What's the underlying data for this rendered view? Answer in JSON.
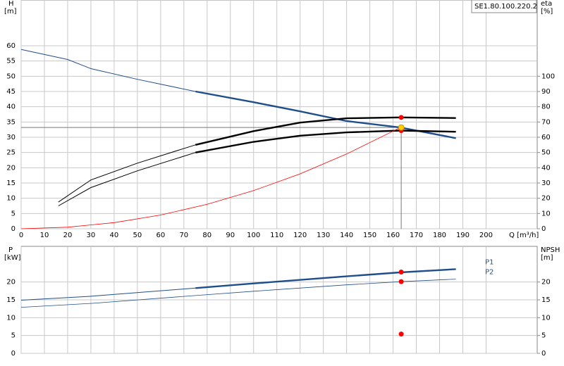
{
  "chart_data": [
    {
      "type": "line",
      "label_box": "SE1.80.100.220.2",
      "ylabel": "H",
      "yunit": "[m]",
      "y2label": "eta",
      "y2unit": "[%]",
      "xlabel": "Q [m³/h]",
      "xlim": [
        0,
        222
      ],
      "xticks": [
        0,
        10,
        20,
        30,
        40,
        50,
        60,
        70,
        80,
        90,
        100,
        110,
        120,
        130,
        140,
        150,
        160,
        170,
        180,
        190,
        200
      ],
      "ylim": [
        0,
        75
      ],
      "yticks": [
        0,
        5,
        10,
        15,
        20,
        25,
        30,
        35,
        40,
        45,
        50,
        55,
        60
      ],
      "y2lim": [
        0,
        150
      ],
      "y2ticks": [
        0,
        10,
        20,
        30,
        40,
        50,
        60,
        70,
        80,
        90,
        100
      ],
      "grid": true,
      "thick_from": 75,
      "series": [
        {
          "color": "#1f4e8c",
          "axis": "y",
          "x": [
            0,
            20,
            30,
            50,
            75,
            100,
            120,
            140,
            163,
            187
          ],
          "values": [
            58.8,
            55.5,
            52.5,
            49,
            45,
            41.5,
            38.5,
            35.3,
            33.2,
            29.7
          ]
        },
        {
          "color": "#000000",
          "axis": "y2",
          "x": [
            16,
            30,
            50,
            75,
            100,
            120,
            140,
            163,
            187
          ],
          "values": [
            17.5,
            32,
            43,
            55,
            64,
            69.6,
            72.4,
            73,
            72.6
          ]
        },
        {
          "color": "#000000",
          "axis": "y2",
          "x": [
            16,
            30,
            50,
            75,
            100,
            120,
            140,
            163,
            187
          ],
          "values": [
            15,
            27,
            38,
            50,
            57,
            61,
            63.2,
            64.4,
            63.6
          ]
        },
        {
          "color": "#ff0000",
          "axis": "y",
          "thin": true,
          "x": [
            0,
            20,
            40,
            60,
            80,
            100,
            120,
            140,
            160,
            163
          ],
          "values": [
            0,
            0.5,
            2,
            4.5,
            8,
            12.5,
            18,
            24.5,
            32,
            33.2
          ]
        }
      ],
      "duty_point": {
        "x": 163.5,
        "y": 33.2,
        "color": "#ffcc00"
      },
      "markers": {
        "color": "#ff0000",
        "axis": "y2",
        "x": [
          163.5,
          163.5
        ],
        "values": [
          73,
          64.4
        ]
      }
    },
    {
      "type": "line",
      "ylabel": "P",
      "yunit": "[kW]",
      "y2label": "NPSH",
      "y2unit": "[m]",
      "xlim": [
        0,
        222
      ],
      "xticks": [
        0,
        10,
        20,
        30,
        40,
        50,
        60,
        70,
        80,
        90,
        100,
        110,
        120,
        130,
        140,
        150,
        160,
        170,
        180,
        190,
        200
      ],
      "xtick_labels": false,
      "ylim": [
        0,
        30
      ],
      "yticks": [
        0,
        5,
        10,
        15,
        20
      ],
      "y2lim": [
        0,
        30
      ],
      "y2ticks": [
        0,
        5,
        10,
        15,
        20
      ],
      "grid": true,
      "thick_from": 75,
      "series": [
        {
          "name": "P1",
          "color": "#1f4e8c",
          "axis": "y",
          "x": [
            0,
            30,
            75,
            100,
            140,
            163,
            187
          ],
          "values": [
            14.9,
            16,
            18.3,
            19.6,
            21.6,
            22.7,
            23.6
          ]
        },
        {
          "name": "P2",
          "color": "#1f4e8c",
          "axis": "y",
          "thin": true,
          "x": [
            0,
            30,
            75,
            100,
            140,
            163,
            187
          ],
          "values": [
            12.9,
            14,
            16.2,
            17.4,
            19.2,
            20.1,
            20.8
          ]
        }
      ],
      "markers": {
        "color": "#ff0000",
        "axis": "y",
        "x": [
          163.5,
          163.5,
          163.5
        ],
        "values": [
          22.8,
          20.1,
          5.4
        ]
      }
    }
  ]
}
